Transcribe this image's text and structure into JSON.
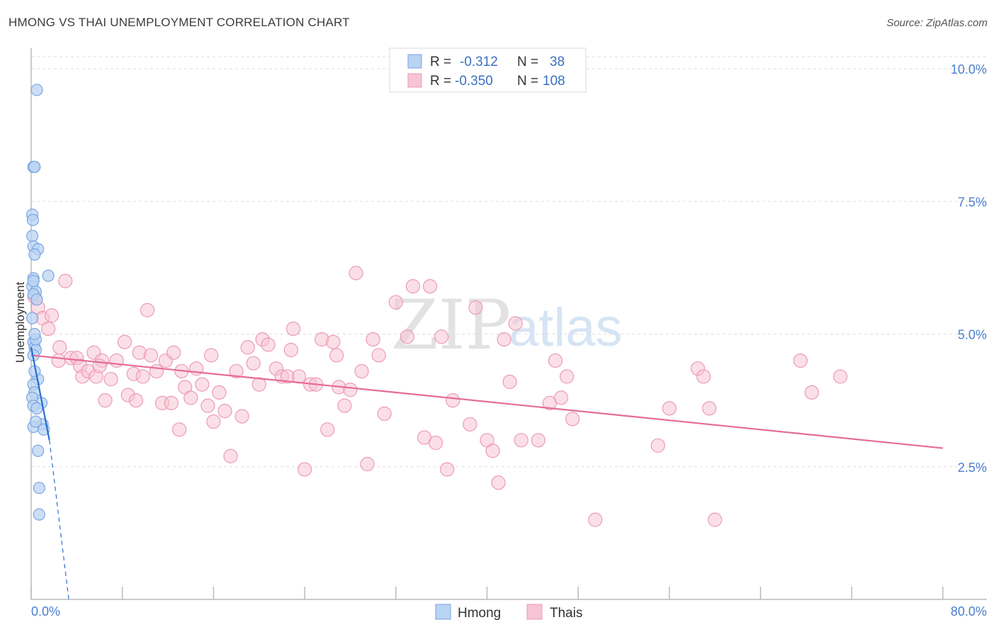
{
  "header": {
    "title": "HMONG VS THAI UNEMPLOYMENT CORRELATION CHART",
    "source": "Source: ZipAtlas.com"
  },
  "watermark": {
    "zip": "ZIP",
    "atlas": "atlas"
  },
  "colors": {
    "hmong_fill": "#b9d3f3",
    "hmong_stroke": "#7aa6e0",
    "hmong_line": "#2b6fd0",
    "thai_fill": "#f7c4d4",
    "thai_stroke": "#ec9ab6",
    "thai_line": "#e66b98",
    "grid": "#dddddd",
    "axis_text": "#4a7fcf"
  },
  "legend": {
    "rows": [
      {
        "r_label": "R =",
        "r_value": "-0.312",
        "n_label": "N =",
        "n_value": "38"
      },
      {
        "r_label": "R =",
        "r_value": "-0.350",
        "n_label": "N =",
        "n_value": "108"
      }
    ]
  },
  "bottom_legend": {
    "items": [
      "Hmong",
      "Thais"
    ]
  },
  "chart_data": {
    "type": "scatter",
    "title": "HMONG VS THAI UNEMPLOYMENT CORRELATION CHART",
    "xlabel": "",
    "ylabel": "Unemployment",
    "xlim": [
      0,
      80
    ],
    "ylim": [
      0,
      10.5
    ],
    "x_tick_labels": [
      "0.0%",
      "80.0%"
    ],
    "y_ticks": [
      2.5,
      5.0,
      7.5,
      10.0
    ],
    "y_tick_labels": [
      "2.5%",
      "5.0%",
      "7.5%",
      "10.0%"
    ],
    "grid": true,
    "legend_position": "top-center",
    "series": [
      {
        "name": "Hmong",
        "r": -0.312,
        "n": 38,
        "trend": {
          "x": [
            0.0,
            1.6
          ],
          "y": [
            4.75,
            3.0
          ],
          "dashed_to": [
            3.3,
            0.0
          ]
        },
        "points": [
          [
            0.5,
            9.6
          ],
          [
            0.2,
            8.15
          ],
          [
            0.3,
            8.15
          ],
          [
            0.1,
            7.25
          ],
          [
            0.15,
            7.15
          ],
          [
            0.1,
            6.85
          ],
          [
            0.2,
            6.65
          ],
          [
            0.6,
            6.6
          ],
          [
            0.3,
            6.5
          ],
          [
            1.5,
            6.1
          ],
          [
            0.2,
            6.05
          ],
          [
            0.1,
            5.9
          ],
          [
            0.4,
            5.8
          ],
          [
            0.2,
            5.75
          ],
          [
            0.5,
            5.65
          ],
          [
            0.1,
            5.3
          ],
          [
            0.2,
            4.85
          ],
          [
            0.3,
            4.75
          ],
          [
            0.4,
            4.7
          ],
          [
            0.2,
            4.6
          ],
          [
            0.6,
            4.15
          ],
          [
            0.2,
            4.05
          ],
          [
            0.3,
            3.9
          ],
          [
            0.1,
            3.8
          ],
          [
            0.9,
            3.7
          ],
          [
            0.2,
            3.65
          ],
          [
            0.5,
            3.6
          ],
          [
            1.0,
            3.3
          ],
          [
            0.2,
            3.25
          ],
          [
            1.1,
            3.2
          ],
          [
            0.6,
            2.8
          ],
          [
            0.7,
            2.1
          ],
          [
            0.7,
            1.6
          ],
          [
            0.3,
            4.3
          ],
          [
            0.4,
            4.9
          ],
          [
            0.2,
            6.0
          ],
          [
            0.3,
            5.0
          ],
          [
            0.4,
            3.35
          ]
        ]
      },
      {
        "name": "Thais",
        "r": -0.35,
        "n": 108,
        "trend": {
          "x": [
            0.0,
            80.0
          ],
          "y": [
            4.6,
            2.85
          ]
        },
        "points": [
          [
            0.3,
            5.7
          ],
          [
            0.6,
            5.5
          ],
          [
            1.0,
            5.3
          ],
          [
            1.5,
            5.1
          ],
          [
            1.8,
            5.35
          ],
          [
            2.5,
            4.75
          ],
          [
            3.0,
            6.0
          ],
          [
            3.5,
            4.55
          ],
          [
            4.0,
            4.55
          ],
          [
            5.5,
            4.65
          ],
          [
            6.2,
            4.5
          ],
          [
            2.4,
            4.5
          ],
          [
            4.3,
            4.4
          ],
          [
            4.5,
            4.2
          ],
          [
            5.0,
            4.3
          ],
          [
            5.7,
            4.2
          ],
          [
            6.0,
            4.4
          ],
          [
            7.0,
            4.15
          ],
          [
            6.5,
            3.75
          ],
          [
            7.5,
            4.5
          ],
          [
            8.2,
            4.85
          ],
          [
            9.0,
            4.25
          ],
          [
            8.5,
            3.85
          ],
          [
            9.2,
            3.75
          ],
          [
            9.5,
            4.65
          ],
          [
            9.8,
            4.2
          ],
          [
            10.2,
            5.45
          ],
          [
            10.5,
            4.6
          ],
          [
            11.0,
            4.3
          ],
          [
            11.5,
            3.7
          ],
          [
            11.8,
            4.5
          ],
          [
            12.3,
            3.7
          ],
          [
            12.5,
            4.65
          ],
          [
            13.0,
            3.2
          ],
          [
            13.5,
            4.0
          ],
          [
            14.0,
            3.8
          ],
          [
            13.2,
            4.3
          ],
          [
            14.5,
            4.35
          ],
          [
            15.0,
            4.05
          ],
          [
            15.5,
            3.65
          ],
          [
            16.0,
            3.35
          ],
          [
            16.5,
            3.9
          ],
          [
            17.0,
            3.55
          ],
          [
            17.5,
            2.7
          ],
          [
            18.0,
            4.3
          ],
          [
            18.5,
            3.45
          ],
          [
            19.0,
            4.75
          ],
          [
            19.5,
            4.45
          ],
          [
            20.0,
            4.05
          ],
          [
            20.3,
            4.9
          ],
          [
            20.8,
            4.8
          ],
          [
            21.5,
            4.35
          ],
          [
            22.0,
            4.2
          ],
          [
            22.5,
            4.2
          ],
          [
            23.0,
            5.1
          ],
          [
            23.5,
            4.2
          ],
          [
            24.0,
            2.45
          ],
          [
            24.5,
            4.05
          ],
          [
            25.0,
            4.05
          ],
          [
            25.5,
            4.9
          ],
          [
            26.0,
            3.2
          ],
          [
            26.5,
            4.85
          ],
          [
            27.0,
            4.0
          ],
          [
            27.5,
            3.65
          ],
          [
            28.0,
            3.95
          ],
          [
            29.0,
            4.3
          ],
          [
            30.0,
            4.9
          ],
          [
            30.5,
            4.6
          ],
          [
            31.0,
            3.5
          ],
          [
            28.5,
            6.15
          ],
          [
            29.5,
            2.55
          ],
          [
            32.0,
            5.6
          ],
          [
            33.0,
            4.95
          ],
          [
            33.5,
            5.9
          ],
          [
            34.5,
            3.05
          ],
          [
            35.0,
            5.9
          ],
          [
            35.5,
            2.95
          ],
          [
            36.0,
            4.95
          ],
          [
            36.5,
            2.45
          ],
          [
            37.0,
            3.75
          ],
          [
            38.5,
            3.3
          ],
          [
            39.0,
            5.5
          ],
          [
            40.0,
            3.0
          ],
          [
            40.5,
            2.8
          ],
          [
            41.0,
            2.2
          ],
          [
            41.5,
            4.9
          ],
          [
            42.0,
            4.1
          ],
          [
            42.5,
            5.2
          ],
          [
            43.0,
            3.0
          ],
          [
            44.5,
            3.0
          ],
          [
            45.5,
            3.7
          ],
          [
            46.0,
            4.5
          ],
          [
            46.5,
            3.8
          ],
          [
            47.0,
            4.2
          ],
          [
            47.5,
            3.4
          ],
          [
            49.5,
            1.5
          ],
          [
            55.0,
            2.9
          ],
          [
            56.0,
            3.6
          ],
          [
            58.5,
            4.35
          ],
          [
            59.0,
            4.2
          ],
          [
            59.5,
            3.6
          ],
          [
            60.0,
            1.5
          ],
          [
            67.5,
            4.5
          ],
          [
            68.5,
            3.9
          ],
          [
            71.0,
            4.2
          ],
          [
            15.8,
            4.6
          ],
          [
            22.8,
            4.7
          ],
          [
            26.8,
            4.6
          ]
        ]
      }
    ]
  }
}
